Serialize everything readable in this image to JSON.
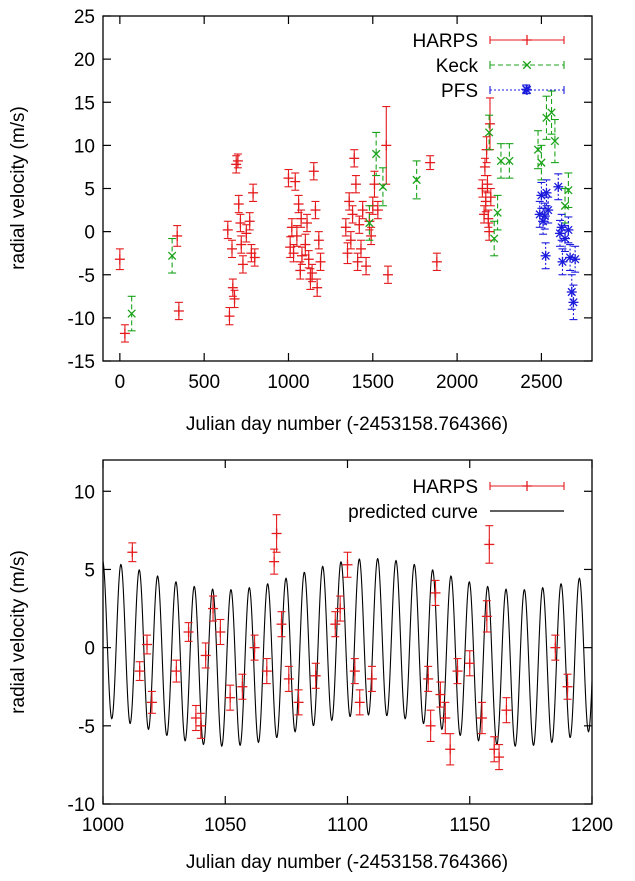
{
  "chart_data": [
    {
      "type": "scatter",
      "xlabel": "Julian day number (-2453158.764366)",
      "ylabel": "radial velocity (m/s)",
      "xlim": [
        -100,
        2800
      ],
      "ylim": [
        -15,
        25
      ],
      "xticks": [
        0,
        500,
        1000,
        1500,
        2000,
        2500
      ],
      "yticks": [
        -15,
        -10,
        -5,
        0,
        5,
        10,
        15,
        20,
        25
      ],
      "legend_position": "top-right",
      "series": [
        {
          "name": "HARPS",
          "color": "#e41a1c",
          "marker": "plus",
          "errorbars": true,
          "points": [
            [
              0,
              -3.2,
              1.2
            ],
            [
              30,
              -11.8,
              1.0
            ],
            [
              340,
              -0.5,
              1.2
            ],
            [
              350,
              -9.2,
              1.0
            ],
            [
              640,
              0.2,
              1.0
            ],
            [
              650,
              -9.8,
              1.0
            ],
            [
              665,
              -2.0,
              1.0
            ],
            [
              670,
              -6.5,
              1.0
            ],
            [
              680,
              -7.8,
              1.0
            ],
            [
              690,
              7.8,
              1.0
            ],
            [
              700,
              8.2,
              0.8
            ],
            [
              705,
              3.2,
              1.0
            ],
            [
              715,
              1.0,
              1.0
            ],
            [
              720,
              -1.5,
              1.0
            ],
            [
              730,
              -3.8,
              1.0
            ],
            [
              750,
              -0.2,
              1.0
            ],
            [
              770,
              1.2,
              1.0
            ],
            [
              780,
              -2.5,
              1.0
            ],
            [
              790,
              4.5,
              1.0
            ],
            [
              800,
              -3.0,
              1.0
            ],
            [
              1000,
              6.2,
              1.0
            ],
            [
              1010,
              -1.8,
              1.2
            ],
            [
              1020,
              0.5,
              1.0
            ],
            [
              1030,
              -2.5,
              1.0
            ],
            [
              1040,
              5.8,
              1.0
            ],
            [
              1050,
              -0.5,
              1.2
            ],
            [
              1060,
              3.2,
              1.0
            ],
            [
              1070,
              -4.5,
              1.0
            ],
            [
              1075,
              1.5,
              1.0
            ],
            [
              1080,
              -2.8,
              1.0
            ],
            [
              1100,
              -1.5,
              1.2
            ],
            [
              1110,
              1.0,
              1.0
            ],
            [
              1120,
              -3.2,
              1.0
            ],
            [
              1130,
              -5.5,
              1.2
            ],
            [
              1140,
              -4.8,
              1.0
            ],
            [
              1150,
              7.0,
              1.0
            ],
            [
              1160,
              2.5,
              1.0
            ],
            [
              1170,
              -6.5,
              1.0
            ],
            [
              1180,
              -1.0,
              1.0
            ],
            [
              1190,
              -3.5,
              1.0
            ],
            [
              1340,
              0.5,
              1.0
            ],
            [
              1350,
              -2.5,
              1.2
            ],
            [
              1360,
              3.5,
              1.0
            ],
            [
              1370,
              -1.0,
              1.0
            ],
            [
              1380,
              2.0,
              1.0
            ],
            [
              1390,
              8.5,
              1.0
            ],
            [
              1400,
              5.5,
              1.0
            ],
            [
              1410,
              -3.5,
              1.0
            ],
            [
              1420,
              0.8,
              1.0
            ],
            [
              1430,
              -2.0,
              1.0
            ],
            [
              1440,
              2.5,
              1.0
            ],
            [
              1460,
              -4.0,
              1.0
            ],
            [
              1480,
              1.2,
              1.0
            ],
            [
              1490,
              -0.5,
              1.0
            ],
            [
              1500,
              3.0,
              1.0
            ],
            [
              1510,
              5.5,
              1.5
            ],
            [
              1530,
              2.5,
              1.0
            ],
            [
              1580,
              10.0,
              4.5
            ],
            [
              1590,
              -5.0,
              1.0
            ],
            [
              1840,
              8.0,
              0.8
            ],
            [
              1880,
              -3.5,
              1.0
            ],
            [
              2150,
              5.0,
              1.0
            ],
            [
              2160,
              2.0,
              1.0
            ],
            [
              2165,
              7.5,
              1.0
            ],
            [
              2170,
              3.5,
              1.2
            ],
            [
              2175,
              9.5,
              1.5
            ],
            [
              2180,
              5.5,
              1.0
            ],
            [
              2185,
              1.5,
              1.0
            ],
            [
              2190,
              0.0,
              1.0
            ],
            [
              2195,
              12.5,
              3.0
            ],
            [
              2200,
              4.0,
              1.0
            ]
          ]
        },
        {
          "name": "Keck",
          "color": "#1aa31a",
          "marker": "cross",
          "errorbars": true,
          "points": [
            [
              70,
              -9.5,
              2.0
            ],
            [
              310,
              -2.8,
              2.0
            ],
            [
              1480,
              1.0,
              2.0
            ],
            [
              1520,
              9.0,
              2.5
            ],
            [
              1560,
              5.2,
              2.2
            ],
            [
              1760,
              6.0,
              2.2
            ],
            [
              2190,
              11.5,
              2.0
            ],
            [
              2220,
              -0.8,
              2.0
            ],
            [
              2240,
              2.2,
              2.0
            ],
            [
              2260,
              8.2,
              2.0
            ],
            [
              2310,
              8.2,
              2.0
            ],
            [
              2480,
              9.5,
              2.2
            ],
            [
              2500,
              8.0,
              2.0
            ],
            [
              2530,
              13.2,
              2.5
            ],
            [
              2560,
              13.8,
              2.5
            ],
            [
              2580,
              10.5,
              2.5
            ],
            [
              2640,
              3.0,
              2.0
            ],
            [
              2660,
              4.8,
              2.0
            ]
          ]
        },
        {
          "name": "PFS",
          "color": "#1b1bdc",
          "marker": "star",
          "errorbars": true,
          "points": [
            [
              2410,
              16.5,
              0.5
            ],
            [
              2490,
              2.0,
              1.5
            ],
            [
              2500,
              4.2,
              1.5
            ],
            [
              2510,
              1.2,
              1.5
            ],
            [
              2520,
              1.8,
              1.5
            ],
            [
              2525,
              -2.8,
              1.5
            ],
            [
              2530,
              4.5,
              1.5
            ],
            [
              2540,
              2.5,
              1.5
            ],
            [
              2600,
              5.2,
              1.5
            ],
            [
              2610,
              -0.2,
              1.5
            ],
            [
              2620,
              0.5,
              1.5
            ],
            [
              2625,
              -3.5,
              1.5
            ],
            [
              2640,
              -0.8,
              1.5
            ],
            [
              2660,
              0.2,
              1.5
            ],
            [
              2670,
              -3.0,
              1.5
            ],
            [
              2680,
              -7.0,
              2.0
            ],
            [
              2690,
              -8.2,
              2.0
            ],
            [
              2700,
              -3.2,
              1.5
            ]
          ]
        }
      ]
    },
    {
      "type": "line",
      "xlabel": "Julian day number (-2453158.764366)",
      "ylabel": "radial velocity (m/s)",
      "xlim": [
        1000,
        1200
      ],
      "ylim": [
        -10,
        12
      ],
      "xticks": [
        1000,
        1050,
        1100,
        1150,
        1200
      ],
      "yticks": [
        -10,
        -5,
        0,
        5,
        10
      ],
      "legend_position": "top-right",
      "series": [
        {
          "name": "HARPS",
          "color": "#e41a1c",
          "marker": "plus",
          "errorbars": true,
          "points": [
            [
              1012,
              6.1,
              0.6
            ],
            [
              1015,
              -1.5,
              0.6
            ],
            [
              1018,
              0.2,
              0.6
            ],
            [
              1020,
              -3.5,
              0.7
            ],
            [
              1030,
              -1.5,
              0.7
            ],
            [
              1035,
              1.0,
              0.6
            ],
            [
              1038,
              -4.5,
              0.8
            ],
            [
              1040,
              -5.0,
              0.8
            ],
            [
              1042,
              -0.5,
              0.8
            ],
            [
              1045,
              2.5,
              0.8
            ],
            [
              1048,
              1.0,
              0.8
            ],
            [
              1052,
              -3.2,
              0.8
            ],
            [
              1057,
              -2.5,
              0.8
            ],
            [
              1062,
              0.0,
              0.8
            ],
            [
              1067,
              -1.5,
              0.8
            ],
            [
              1070,
              5.5,
              0.8
            ],
            [
              1071,
              7.3,
              1.2
            ],
            [
              1073,
              1.5,
              0.8
            ],
            [
              1076,
              -2.0,
              0.8
            ],
            [
              1080,
              -3.5,
              0.8
            ],
            [
              1087,
              -1.8,
              0.8
            ],
            [
              1095,
              1.5,
              0.8
            ],
            [
              1097,
              2.5,
              0.8
            ],
            [
              1100,
              5.3,
              0.8
            ],
            [
              1103,
              -1.5,
              0.8
            ],
            [
              1105,
              -3.5,
              0.8
            ],
            [
              1110,
              -2.0,
              0.8
            ],
            [
              1133,
              -2.0,
              0.8
            ],
            [
              1134,
              -5.0,
              1.0
            ],
            [
              1136,
              3.5,
              0.8
            ],
            [
              1138,
              -3.0,
              0.8
            ],
            [
              1140,
              -4.5,
              1.0
            ],
            [
              1142,
              -6.5,
              1.0
            ],
            [
              1145,
              -1.5,
              0.8
            ],
            [
              1150,
              -1.0,
              0.8
            ],
            [
              1155,
              -4.5,
              1.0
            ],
            [
              1157,
              2.0,
              1.0
            ],
            [
              1158,
              6.6,
              1.2
            ],
            [
              1160,
              -6.5,
              0.8
            ],
            [
              1162,
              -7.0,
              0.8
            ],
            [
              1165,
              -4.0,
              0.8
            ],
            [
              1185,
              0.0,
              0.8
            ],
            [
              1190,
              -2.5,
              0.8
            ]
          ]
        },
        {
          "name": "predicted curve",
          "color": "#000000",
          "line": true,
          "model": {
            "offset": -0.3,
            "amp1": 5.0,
            "period1": 7.5,
            "phase1": 5.9,
            "amp2": 1.0,
            "period2": 120.0,
            "phase2": 0.0
          }
        }
      ]
    }
  ]
}
